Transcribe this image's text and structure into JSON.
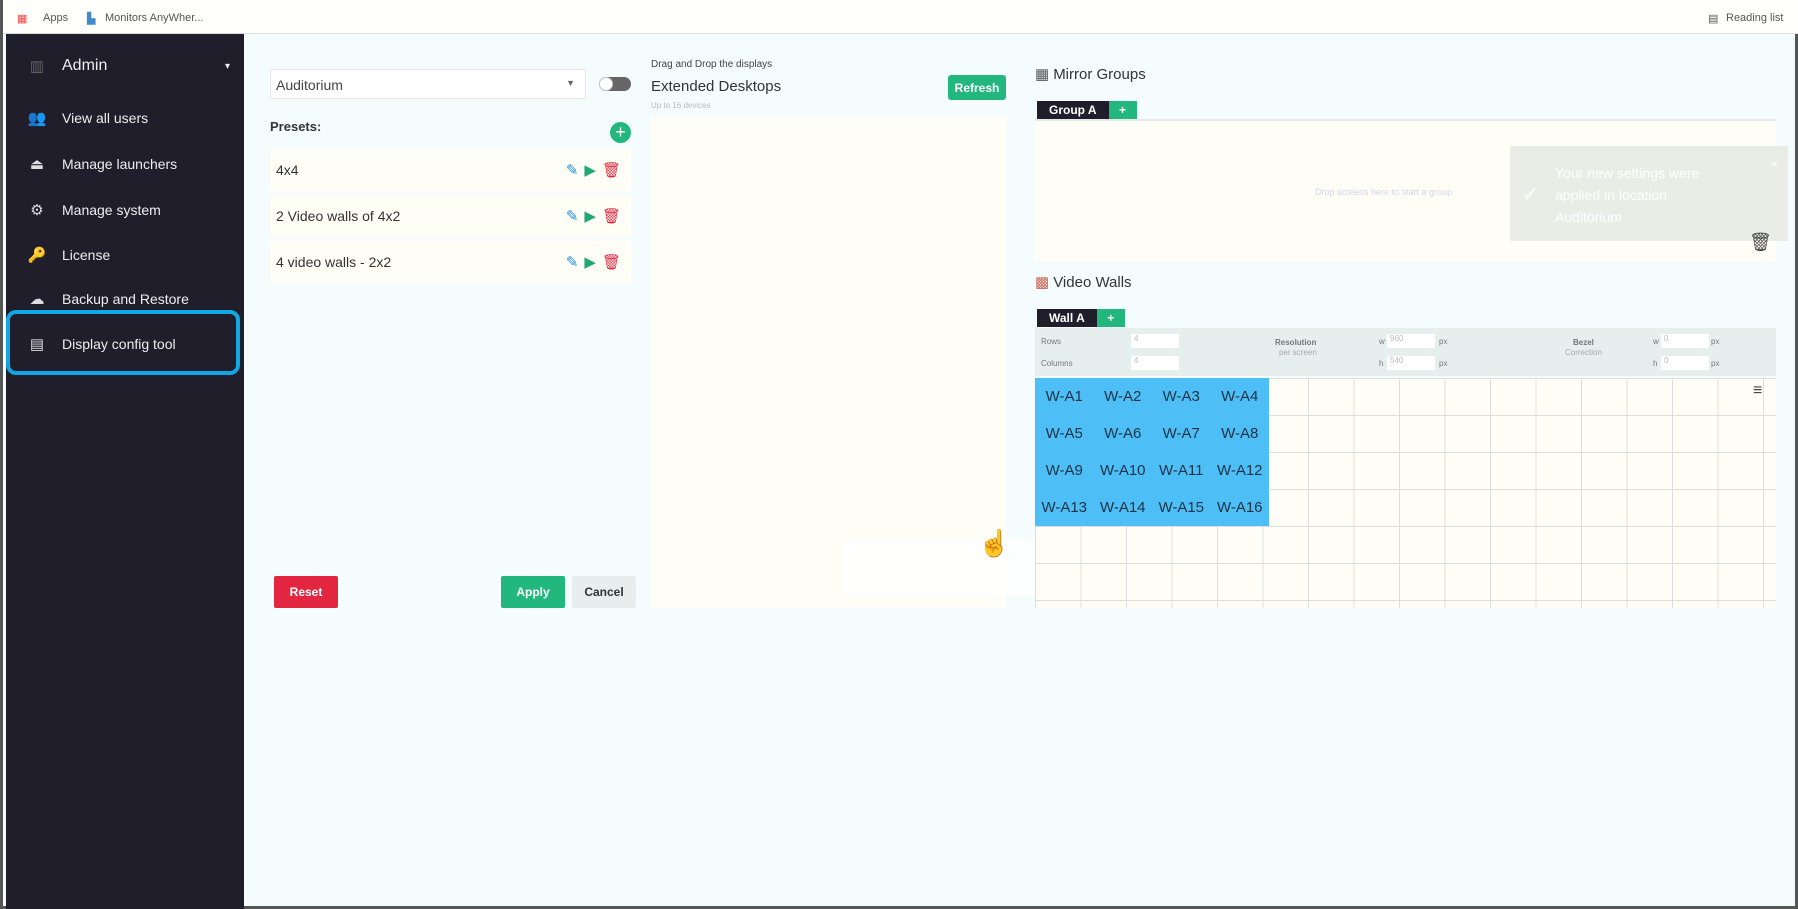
{
  "browser": {
    "bookmarks": [
      "Apps",
      "Monitors AnyWher..."
    ],
    "reading_list": "Reading list"
  },
  "sidebar": {
    "title": "Admin",
    "items": [
      {
        "label": "View all users",
        "icon": "users-icon"
      },
      {
        "label": "Manage launchers",
        "icon": "launcher-icon"
      },
      {
        "label": "Manage system",
        "icon": "system-icon"
      },
      {
        "label": "License",
        "icon": "key-icon"
      },
      {
        "label": "Backup and Restore",
        "icon": "cloud-icon"
      },
      {
        "label": "Display config tool",
        "icon": "display-icon",
        "active": true
      }
    ]
  },
  "left": {
    "location": "Auditorium",
    "presets_label": "Presets:",
    "presets": [
      "4x4",
      "2 Video walls of 4x2",
      "4 video walls - 2x2"
    ],
    "reset": "Reset",
    "apply": "Apply",
    "cancel": "Cancel"
  },
  "middle": {
    "hint": "Drag and Drop the displays",
    "title": "Extended Desktops",
    "subtitle": "Up to 16 devices",
    "refresh": "Refresh"
  },
  "mirror": {
    "title": "Mirror Groups",
    "tab": "Group A",
    "plus": "+",
    "drop_hint": "Drop screens here to start a group"
  },
  "toast": {
    "message": "Your new settings were applied in location Auditorium",
    "close": "×"
  },
  "walls": {
    "title": "Video Walls",
    "tab": "Wall A",
    "plus": "+",
    "rows_label": "Rows",
    "rows": "4",
    "columns_label": "Columns",
    "columns": "4",
    "resolution_label": "Resolution",
    "resolution_sub": "per screen",
    "w_label": "w",
    "w": "960",
    "h_label": "h",
    "h": "540",
    "px": "px",
    "bezel_label": "Bezel",
    "bezel_sub": "Correction",
    "bw": "0",
    "bh": "0",
    "cells": [
      "W-A1",
      "W-A2",
      "W-A3",
      "W-A4",
      "W-A5",
      "W-A6",
      "W-A7",
      "W-A8",
      "W-A9",
      "W-A10",
      "W-A11",
      "W-A12",
      "W-A13",
      "W-A14",
      "W-A15",
      "W-A16"
    ]
  },
  "colors": {
    "sidebar": "#201e2b",
    "accent": "#22b77c",
    "danger": "#e3263f",
    "wall": "#4dbef6",
    "highlight": "#12a6e4"
  }
}
